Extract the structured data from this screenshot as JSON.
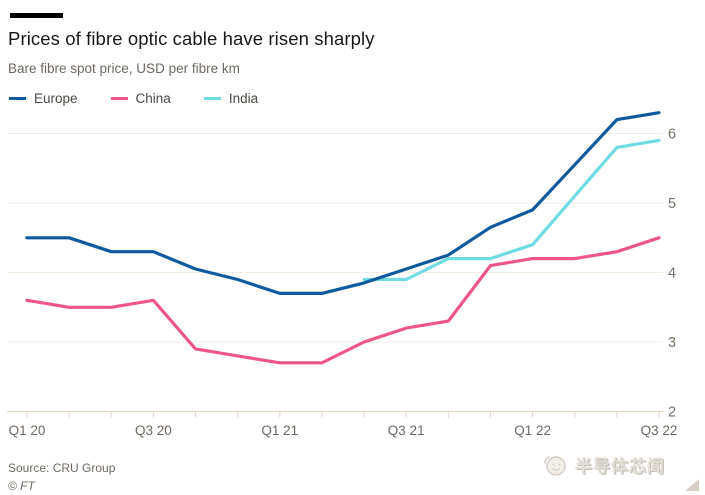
{
  "chart_data": {
    "type": "line",
    "title": "Prices of fibre optic cable have risen sharply",
    "subtitle": "Bare fibre spot price, USD per fibre km",
    "x_labels": [
      "Q1 20",
      "Q3 20",
      "Q1 21",
      "Q3 21",
      "Q1 22",
      "Q3 22"
    ],
    "x_label_every_n_ticks": 3,
    "points_per_series": 16,
    "x_range_note": "16 bimonthly points spanning Q1 2020 to Q3 2022",
    "ylim": [
      2,
      6
    ],
    "y_ticks": [
      2,
      3,
      4,
      5,
      6
    ],
    "grid": "horizontal",
    "legend_position": "top-left",
    "series": [
      {
        "name": "Europe",
        "color": "#0f5a9e",
        "values": [
          4.5,
          4.5,
          4.3,
          4.3,
          4.05,
          3.9,
          3.7,
          3.7,
          3.85,
          4.05,
          4.25,
          4.65,
          4.9,
          5.55,
          6.2,
          6.3
        ]
      },
      {
        "name": "China",
        "color": "#ee5687",
        "values": [
          3.6,
          3.5,
          3.5,
          3.6,
          2.9,
          2.8,
          2.7,
          2.7,
          3.0,
          3.2,
          3.3,
          4.1,
          4.2,
          4.2,
          4.3,
          4.5
        ]
      },
      {
        "name": "India",
        "color": "#70dbe3",
        "values": [
          null,
          null,
          null,
          null,
          null,
          null,
          null,
          null,
          3.9,
          3.9,
          4.2,
          4.2,
          4.4,
          5.1,
          5.8,
          5.9
        ]
      }
    ]
  },
  "footer": {
    "source": "Source: CRU Group",
    "copyright": "© FT"
  },
  "watermark": {
    "text": "半导体芯闻"
  },
  "colors": {
    "grid": "#f4ebe1",
    "axis": "#e3d6c5",
    "tick_label": "#6e6862",
    "background": "#ffffff",
    "accent_bar": "#000000"
  }
}
